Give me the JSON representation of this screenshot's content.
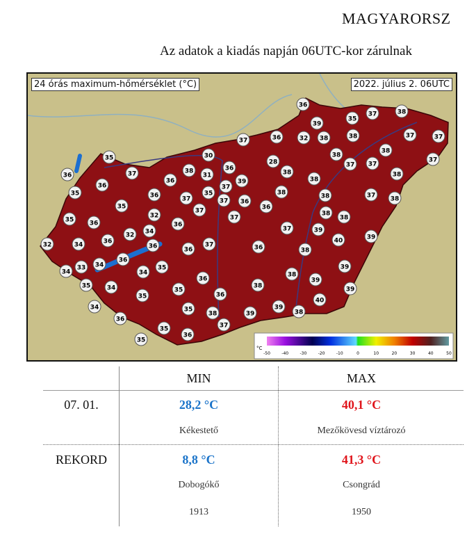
{
  "header": {
    "title": "MAGYARORSZ",
    "subtitle": "Az adatok a kiadás napján 06UTC-kor zárulnak"
  },
  "map": {
    "title": "24 órás maximum-hőmérséklet (°C)",
    "date": "2022. július 2. 06UTC",
    "legend": {
      "unit": "°C",
      "ticks": [
        "-50",
        "-40",
        "-30",
        "-20",
        "-10",
        "0",
        "10",
        "20",
        "30",
        "40",
        "50"
      ]
    },
    "colors": {
      "country": "#8e1014",
      "background": "#c9c08a",
      "water": "#1c6fd0"
    },
    "station_values": [
      36,
      39,
      35,
      37,
      38,
      37,
      36,
      32,
      38,
      38,
      37,
      37,
      35,
      30,
      28,
      38,
      38,
      37,
      36,
      37,
      36,
      38,
      31,
      36,
      38,
      38,
      37,
      37,
      38,
      35,
      36,
      36,
      37,
      35,
      37,
      39,
      38,
      38,
      37,
      38,
      35,
      36,
      37,
      36,
      37,
      35,
      36,
      32,
      36,
      37,
      38,
      38,
      32,
      34,
      37,
      39,
      39,
      32,
      34,
      36,
      36,
      36,
      37,
      36,
      38,
      40,
      34,
      33,
      34,
      36,
      34,
      35,
      39,
      36,
      38,
      39,
      35,
      34,
      35,
      35,
      38,
      36,
      39,
      34,
      35,
      38,
      39,
      39,
      38,
      40,
      36,
      37,
      35,
      36,
      35
    ]
  },
  "table": {
    "col_min": "MIN",
    "col_max": "MAX",
    "rows": [
      {
        "label": "07. 01.",
        "min": "28,2 °C",
        "min_place": "Kékestető",
        "max": "40,1 °C",
        "max_place": "Mezőkövesd víztározó"
      },
      {
        "label": "REKORD",
        "min": "8,8 °C",
        "min_place": "Dobogókő",
        "min_year": "1913",
        "max": "41,3 °C",
        "max_place": "Csongrád",
        "max_year": "1950"
      }
    ]
  }
}
